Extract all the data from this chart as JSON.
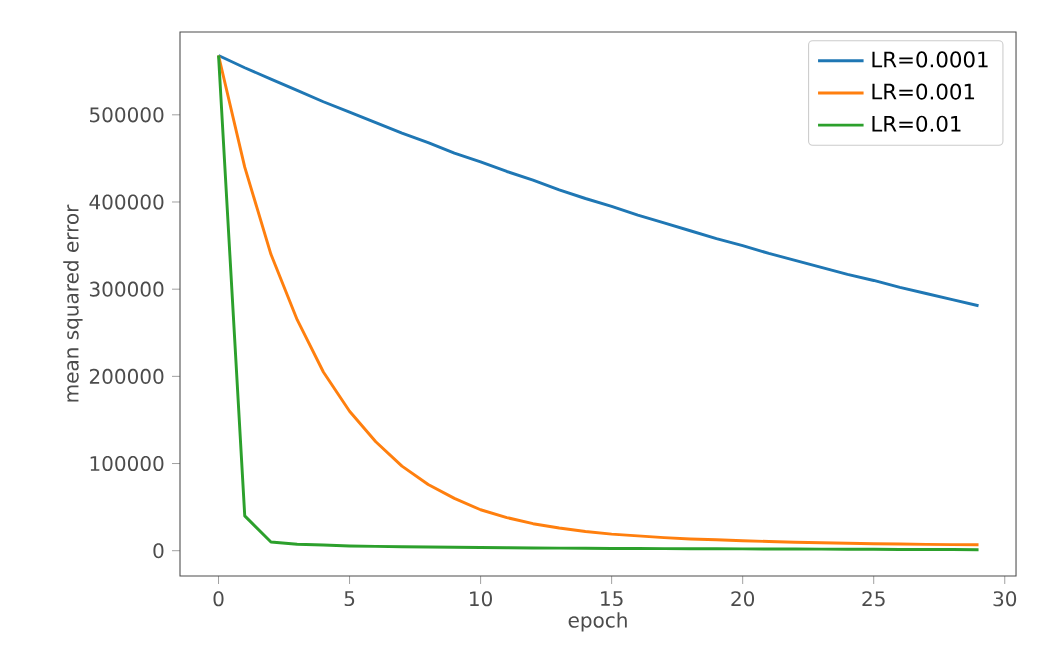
{
  "chart_data": {
    "type": "line",
    "xlabel": "epoch",
    "ylabel": "mean squared error",
    "x": [
      0,
      1,
      2,
      3,
      4,
      5,
      6,
      7,
      8,
      9,
      10,
      11,
      12,
      13,
      14,
      15,
      16,
      17,
      18,
      19,
      20,
      21,
      22,
      23,
      24,
      25,
      26,
      27,
      28,
      29
    ],
    "series": [
      {
        "name": "LR=0.0001",
        "color": "#1f77b4",
        "values": [
          568000,
          554000,
          541000,
          528000,
          515000,
          503000,
          491000,
          479000,
          468000,
          456000,
          446000,
          435000,
          425000,
          414000,
          404000,
          395000,
          385000,
          376000,
          367000,
          358000,
          350000,
          341000,
          333000,
          325000,
          317000,
          310000,
          302000,
          295000,
          288000,
          281000
        ]
      },
      {
        "name": "LR=0.001",
        "color": "#ff7f0e",
        "values": [
          568000,
          440000,
          340000,
          265000,
          205000,
          160000,
          125000,
          97000,
          76000,
          60000,
          47000,
          38000,
          31000,
          26000,
          22000,
          19000,
          17000,
          15000,
          13500,
          12500,
          11500,
          10500,
          9800,
          9200,
          8600,
          8100,
          7700,
          7300,
          7000,
          6800
        ]
      },
      {
        "name": "LR=0.01",
        "color": "#2ca02c",
        "values": [
          568000,
          40000,
          10000,
          7500,
          6500,
          5500,
          5000,
          4600,
          4200,
          3900,
          3600,
          3400,
          3200,
          3000,
          2800,
          2600,
          2500,
          2400,
          2300,
          2200,
          2100,
          2000,
          1900,
          1800,
          1700,
          1600,
          1500,
          1400,
          1300,
          1200
        ]
      }
    ],
    "xlim": [
      -1.47,
      30.43
    ],
    "ylim": [
      -29000,
      595000
    ],
    "xticks": [
      0,
      5,
      10,
      15,
      20,
      25,
      30
    ],
    "yticks": [
      0,
      100000,
      200000,
      300000,
      400000,
      500000
    ],
    "legend": "top right"
  }
}
